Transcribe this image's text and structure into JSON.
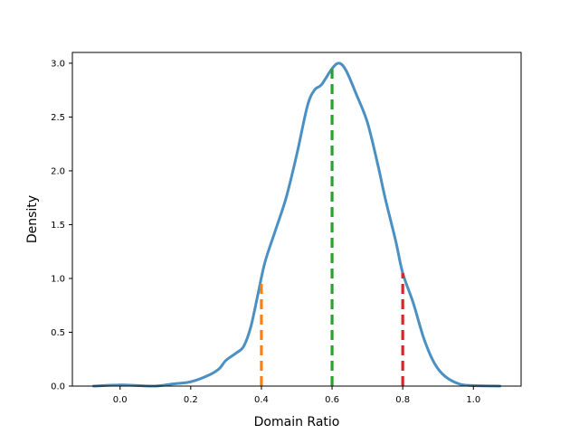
{
  "chart_data": {
    "type": "line",
    "title": "",
    "xlabel": "Domain Ratio",
    "ylabel": "Density",
    "xlim": [
      -0.135,
      1.135
    ],
    "ylim": [
      0,
      3.1
    ],
    "xticks": [
      0.0,
      0.2,
      0.4,
      0.6,
      0.8,
      1.0
    ],
    "xtick_labels": [
      "0.0",
      "0.2",
      "0.4",
      "0.6",
      "0.8",
      "1.0"
    ],
    "yticks": [
      0.0,
      0.5,
      1.0,
      1.5,
      2.0,
      2.5,
      3.0
    ],
    "ytick_labels": [
      "0.0",
      "0.5",
      "1.0",
      "1.5",
      "2.0",
      "2.5",
      "3.0"
    ],
    "grid": false,
    "legend": "none",
    "series": [
      {
        "kind": "density-curve",
        "color": "#4a90c2",
        "points": [
          [
            -0.075,
            0.0
          ],
          [
            0.0,
            0.01
          ],
          [
            0.05,
            0.005
          ],
          [
            0.1,
            0.0
          ],
          [
            0.15,
            0.02
          ],
          [
            0.2,
            0.04
          ],
          [
            0.25,
            0.1
          ],
          [
            0.28,
            0.16
          ],
          [
            0.3,
            0.24
          ],
          [
            0.33,
            0.31
          ],
          [
            0.35,
            0.37
          ],
          [
            0.37,
            0.55
          ],
          [
            0.39,
            0.85
          ],
          [
            0.41,
            1.15
          ],
          [
            0.44,
            1.45
          ],
          [
            0.47,
            1.75
          ],
          [
            0.5,
            2.15
          ],
          [
            0.53,
            2.6
          ],
          [
            0.55,
            2.75
          ],
          [
            0.57,
            2.8
          ],
          [
            0.6,
            2.95
          ],
          [
            0.62,
            3.0
          ],
          [
            0.64,
            2.93
          ],
          [
            0.67,
            2.7
          ],
          [
            0.7,
            2.45
          ],
          [
            0.73,
            2.05
          ],
          [
            0.75,
            1.75
          ],
          [
            0.78,
            1.35
          ],
          [
            0.8,
            1.05
          ],
          [
            0.83,
            0.77
          ],
          [
            0.86,
            0.44
          ],
          [
            0.89,
            0.21
          ],
          [
            0.92,
            0.09
          ],
          [
            0.96,
            0.02
          ],
          [
            1.0,
            0.005
          ],
          [
            1.075,
            0.0
          ]
        ]
      }
    ],
    "markers": [
      {
        "x": 0.4,
        "y": 1.0,
        "color": "#ff7f0e",
        "style": "dashed"
      },
      {
        "x": 0.6,
        "y": 2.95,
        "color": "#2ca02c",
        "style": "dashed"
      },
      {
        "x": 0.8,
        "y": 1.05,
        "color": "#d62728",
        "style": "dashed"
      }
    ]
  }
}
